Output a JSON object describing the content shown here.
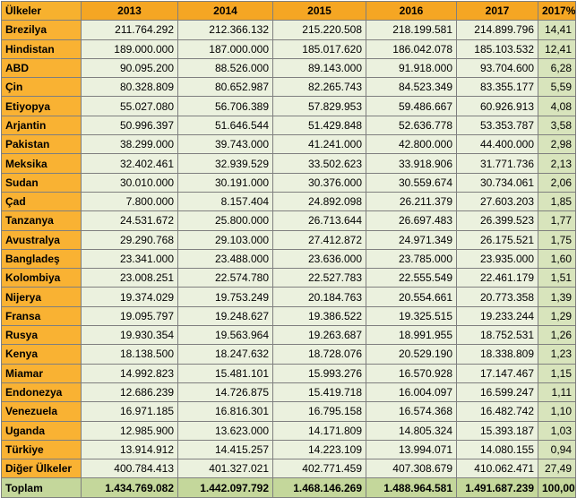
{
  "table": {
    "headers": [
      "Ülkeler",
      "2013",
      "2014",
      "2015",
      "2016",
      "2017",
      "2017%"
    ],
    "rows": [
      [
        "Brezilya",
        "211.764.292",
        "212.366.132",
        "215.220.508",
        "218.199.581",
        "214.899.796",
        "14,41"
      ],
      [
        "Hindistan",
        "189.000.000",
        "187.000.000",
        "185.017.620",
        "186.042.078",
        "185.103.532",
        "12,41"
      ],
      [
        "ABD",
        "90.095.200",
        "88.526.000",
        "89.143.000",
        "91.918.000",
        "93.704.600",
        "6,28"
      ],
      [
        "Çin",
        "80.328.809",
        "80.652.987",
        "82.265.743",
        "84.523.349",
        "83.355.177",
        "5,59"
      ],
      [
        "Etiyopya",
        "55.027.080",
        "56.706.389",
        "57.829.953",
        "59.486.667",
        "60.926.913",
        "4,08"
      ],
      [
        "Arjantin",
        "50.996.397",
        "51.646.544",
        "51.429.848",
        "52.636.778",
        "53.353.787",
        "3,58"
      ],
      [
        "Pakistan",
        "38.299.000",
        "39.743.000",
        "41.241.000",
        "42.800.000",
        "44.400.000",
        "2,98"
      ],
      [
        "Meksika",
        "32.402.461",
        "32.939.529",
        "33.502.623",
        "33.918.906",
        "31.771.736",
        "2,13"
      ],
      [
        "Sudan",
        "30.010.000",
        "30.191.000",
        "30.376.000",
        "30.559.674",
        "30.734.061",
        "2,06"
      ],
      [
        "Çad",
        "7.800.000",
        "8.157.404",
        "24.892.098",
        "26.211.379",
        "27.603.203",
        "1,85"
      ],
      [
        "Tanzanya",
        "24.531.672",
        "25.800.000",
        "26.713.644",
        "26.697.483",
        "26.399.523",
        "1,77"
      ],
      [
        "Avustralya",
        "29.290.768",
        "29.103.000",
        "27.412.872",
        "24.971.349",
        "26.175.521",
        "1,75"
      ],
      [
        "Bangladeş",
        "23.341.000",
        "23.488.000",
        "23.636.000",
        "23.785.000",
        "23.935.000",
        "1,60"
      ],
      [
        "Kolombiya",
        "23.008.251",
        "22.574.780",
        "22.527.783",
        "22.555.549",
        "22.461.179",
        "1,51"
      ],
      [
        "Nijerya",
        "19.374.029",
        "19.753.249",
        "20.184.763",
        "20.554.661",
        "20.773.358",
        "1,39"
      ],
      [
        "Fransa",
        "19.095.797",
        "19.248.627",
        "19.386.522",
        "19.325.515",
        "19.233.244",
        "1,29"
      ],
      [
        "Rusya",
        "19.930.354",
        "19.563.964",
        "19.263.687",
        "18.991.955",
        "18.752.531",
        "1,26"
      ],
      [
        "Kenya",
        "18.138.500",
        "18.247.632",
        "18.728.076",
        "20.529.190",
        "18.338.809",
        "1,23"
      ],
      [
        "Miamar",
        "14.992.823",
        "15.481.101",
        "15.993.276",
        "16.570.928",
        "17.147.467",
        "1,15"
      ],
      [
        "Endonezya",
        "12.686.239",
        "14.726.875",
        "15.419.718",
        "16.004.097",
        "16.599.247",
        "1,11"
      ],
      [
        "Venezuela",
        "16.971.185",
        "16.816.301",
        "16.795.158",
        "16.574.368",
        "16.482.742",
        "1,10"
      ],
      [
        "Uganda",
        "12.985.900",
        "13.623.000",
        "14.171.809",
        "14.805.324",
        "15.393.187",
        "1,03"
      ],
      [
        "Türkiye",
        "13.914.912",
        "14.415.257",
        "14.223.109",
        "13.994.071",
        "14.080.155",
        "0,94"
      ],
      [
        "Diğer Ülkeler",
        "400.784.413",
        "401.327.021",
        "402.771.459",
        "407.308.679",
        "410.062.471",
        "27,49"
      ]
    ],
    "total": [
      "Toplam",
      "1.434.769.082",
      "1.442.097.792",
      "1.468.146.269",
      "1.488.964.581",
      "1.491.687.239",
      "100,00"
    ]
  },
  "colors": {
    "header_orange": "#f5a623",
    "row_label_orange": "#f9b233",
    "cell_light_green": "#ebf1de",
    "pct_green": "#d8e4bc",
    "total_green": "#c4d79b"
  }
}
